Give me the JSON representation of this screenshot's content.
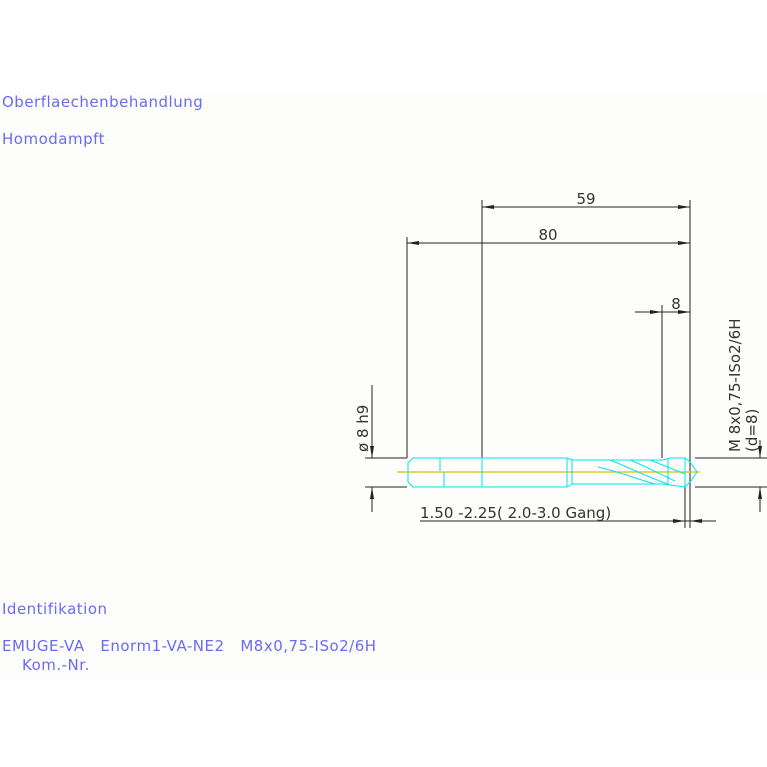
{
  "labels": {
    "surface_heading": "Oberflaechenbehandlung",
    "surface_value": "Homodampft",
    "ident_heading": "Identifikation",
    "ident_line": "EMUGE-VA   Enorm1-VA-NE2   M8x0,75-ISo2/6H",
    "kom_nr": "Kom.-Nr."
  },
  "dimensions": {
    "thread_length": "59",
    "total_length": "80",
    "tip_length": "8",
    "shank_diameter": "ø 8 h9",
    "thread_size": "M 8x0,75-ISo2/6H",
    "thread_d": "(d=8)",
    "chamfer": "1.50 -2.25( 2.0-3.0  Gang)"
  },
  "colors": {
    "text": "#6b6bf0",
    "tool_outline": "#00e5f0",
    "center_line": "#e0c000",
    "dimension": "#222222"
  }
}
